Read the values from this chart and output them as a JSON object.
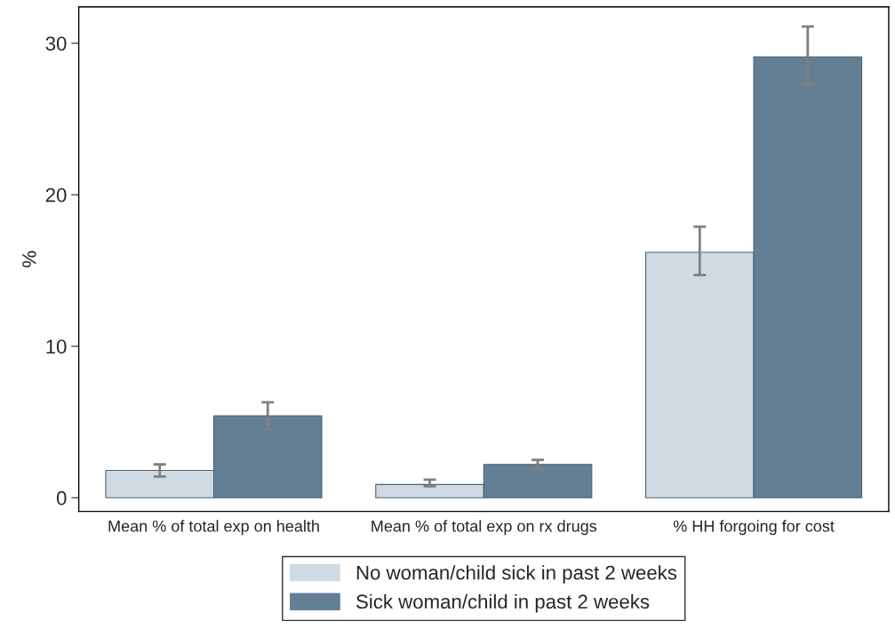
{
  "chart_data": {
    "type": "bar",
    "ylabel": "%",
    "categories": [
      "Mean % of total exp on health",
      "Mean % of total exp on rx drugs",
      "% HH forgoing for cost"
    ],
    "series": [
      {
        "name": "No woman/child sick in past 2 weeks",
        "color": "#d0dae3",
        "values": [
          1.8,
          0.87,
          16.2
        ],
        "errors": [
          [
            1.4,
            2.2
          ],
          [
            0.75,
            1.2
          ],
          [
            14.7,
            17.9
          ]
        ]
      },
      {
        "name": "Sick woman/child in past 2 weeks",
        "color": "#647f94",
        "values": [
          5.4,
          2.2,
          29.1
        ],
        "errors": [
          [
            4.5,
            6.3
          ],
          [
            1.85,
            2.5
          ],
          [
            27.3,
            31.1
          ]
        ]
      }
    ],
    "ylim": [
      -0.9,
      32.4
    ],
    "yticks": [
      0,
      10,
      20,
      30
    ],
    "grid": false,
    "legend": "bottom"
  }
}
